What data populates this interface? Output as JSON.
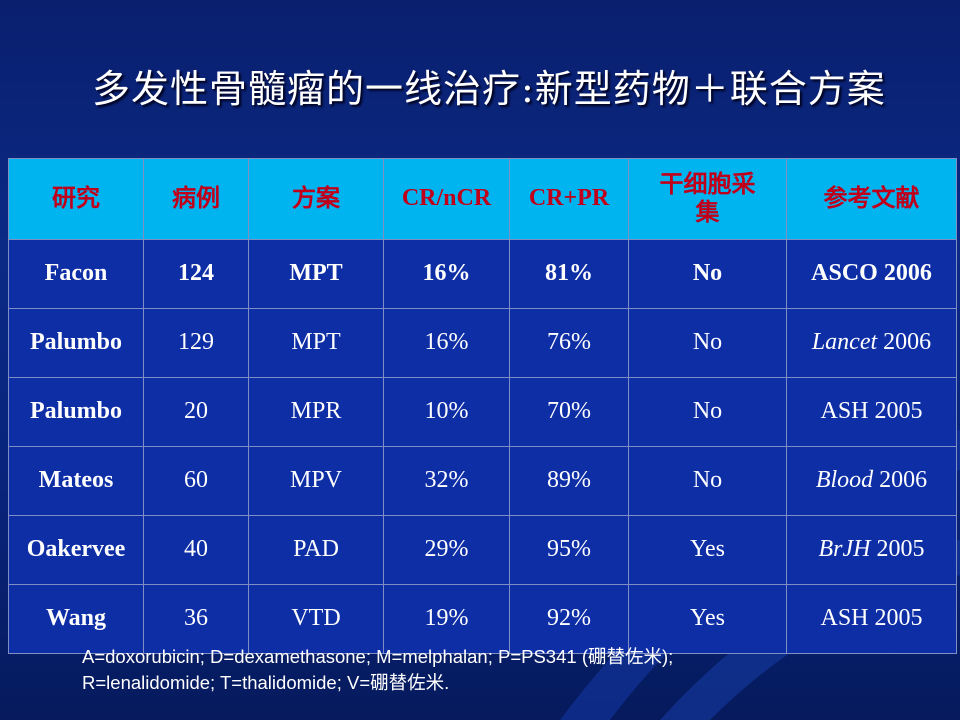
{
  "title": "多发性骨髓瘤的一线治疗:新型药物＋联合方案",
  "table": {
    "headers": [
      "研究",
      "病例",
      "方案",
      "CR/nCR",
      "CR+PR",
      "干细胞采集",
      "参考文献"
    ],
    "rows": [
      {
        "study": "Facon",
        "cases": "124",
        "regimen": "MPT",
        "cr_ncr": "16%",
        "cr_pr": "81%",
        "stem_cell": "No",
        "ref_journal": "",
        "ref_text": "ASCO 2006"
      },
      {
        "study": "Palumbo",
        "cases": "129",
        "regimen": "MPT",
        "cr_ncr": "16%",
        "cr_pr": "76%",
        "stem_cell": "No",
        "ref_journal": "Lancet",
        "ref_text": " 2006"
      },
      {
        "study": "Palumbo",
        "cases": "20",
        "regimen": "MPR",
        "cr_ncr": "10%",
        "cr_pr": "70%",
        "stem_cell": "No",
        "ref_journal": "",
        "ref_text": "ASH 2005"
      },
      {
        "study": "Mateos",
        "cases": "60",
        "regimen": "MPV",
        "cr_ncr": "32%",
        "cr_pr": "89%",
        "stem_cell": "No",
        "ref_journal": "Blood",
        "ref_text": " 2006"
      },
      {
        "study": "Oakervee",
        "cases": "40",
        "regimen": "PAD",
        "cr_ncr": "29%",
        "cr_pr": "95%",
        "stem_cell": "Yes",
        "ref_journal": "BrJH",
        "ref_text": " 2005"
      },
      {
        "study": "Wang",
        "cases": "36",
        "regimen": "VTD",
        "cr_ncr": "19%",
        "cr_pr": "92%",
        "stem_cell": "Yes",
        "ref_journal": "",
        "ref_text": "ASH 2005"
      }
    ]
  },
  "footnote": {
    "line1": "A=doxorubicin; D=dexamethasone; M=melphalan; P=PS341 (硼替佐米);",
    "line2": "R=lenalidomide; T=thalidomide; V=硼替佐米."
  },
  "colors": {
    "background": "#0a2a86",
    "header_bg": "#00b4f0",
    "header_text": "#c0001a",
    "cell_bg": "#0e2ea6",
    "text": "#ffffff"
  }
}
